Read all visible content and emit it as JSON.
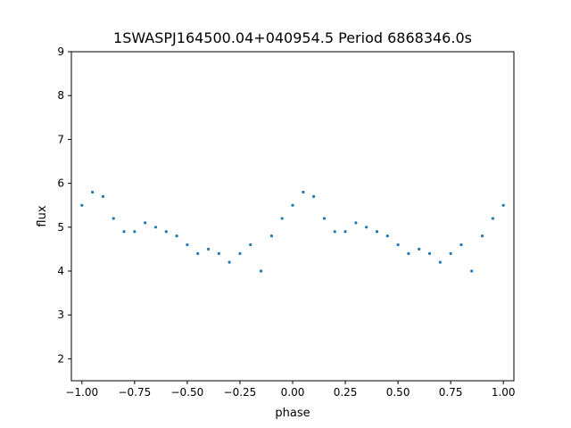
{
  "chart_data": {
    "type": "scatter",
    "title": "1SWASPJ164500.04+040954.5 Period 6868346.0s",
    "xlabel": "phase",
    "ylabel": "flux",
    "xlim": [
      -1.05,
      1.05
    ],
    "ylim": [
      1.5,
      9.0
    ],
    "xticks": [
      -1.0,
      -0.75,
      -0.5,
      -0.25,
      0.0,
      0.25,
      0.5,
      0.75,
      1.0
    ],
    "xtick_labels": [
      "−1.00",
      "−0.75",
      "−0.50",
      "−0.25",
      "0.00",
      "0.25",
      "0.50",
      "0.75",
      "1.00"
    ],
    "yticks": [
      2,
      3,
      4,
      5,
      6,
      7,
      8,
      9
    ],
    "ytick_labels": [
      "2",
      "3",
      "4",
      "5",
      "6",
      "7",
      "8",
      "9"
    ],
    "grid": false,
    "legend": "none",
    "marker_color": "#1f77b4",
    "series": [
      {
        "x": [
          -1.0,
          -0.95,
          -0.9,
          -0.85,
          -0.8,
          -0.75,
          -0.7,
          -0.65,
          -0.6,
          -0.55,
          -0.5,
          -0.45,
          -0.4,
          -0.35,
          -0.3,
          -0.25,
          -0.2,
          -0.15,
          -0.1,
          -0.05,
          0.0,
          0.05,
          0.1,
          0.15,
          0.2,
          0.25,
          0.3,
          0.35,
          0.4,
          0.45,
          0.5,
          0.55,
          0.6,
          0.65,
          0.7,
          0.75,
          0.8,
          0.85,
          0.9,
          0.95,
          1.0
        ],
        "y": [
          5.5,
          5.8,
          5.7,
          5.2,
          4.9,
          4.9,
          5.1,
          5.0,
          4.9,
          4.8,
          4.6,
          4.4,
          4.5,
          4.4,
          4.2,
          4.4,
          4.6,
          4.0,
          4.8,
          5.2,
          5.5,
          5.8,
          5.7,
          5.2,
          4.9,
          4.9,
          5.1,
          5.0,
          4.9,
          4.8,
          4.6,
          4.4,
          4.5,
          4.4,
          4.2,
          4.4,
          4.6,
          4.0,
          4.8,
          5.2,
          5.5
        ]
      }
    ]
  }
}
